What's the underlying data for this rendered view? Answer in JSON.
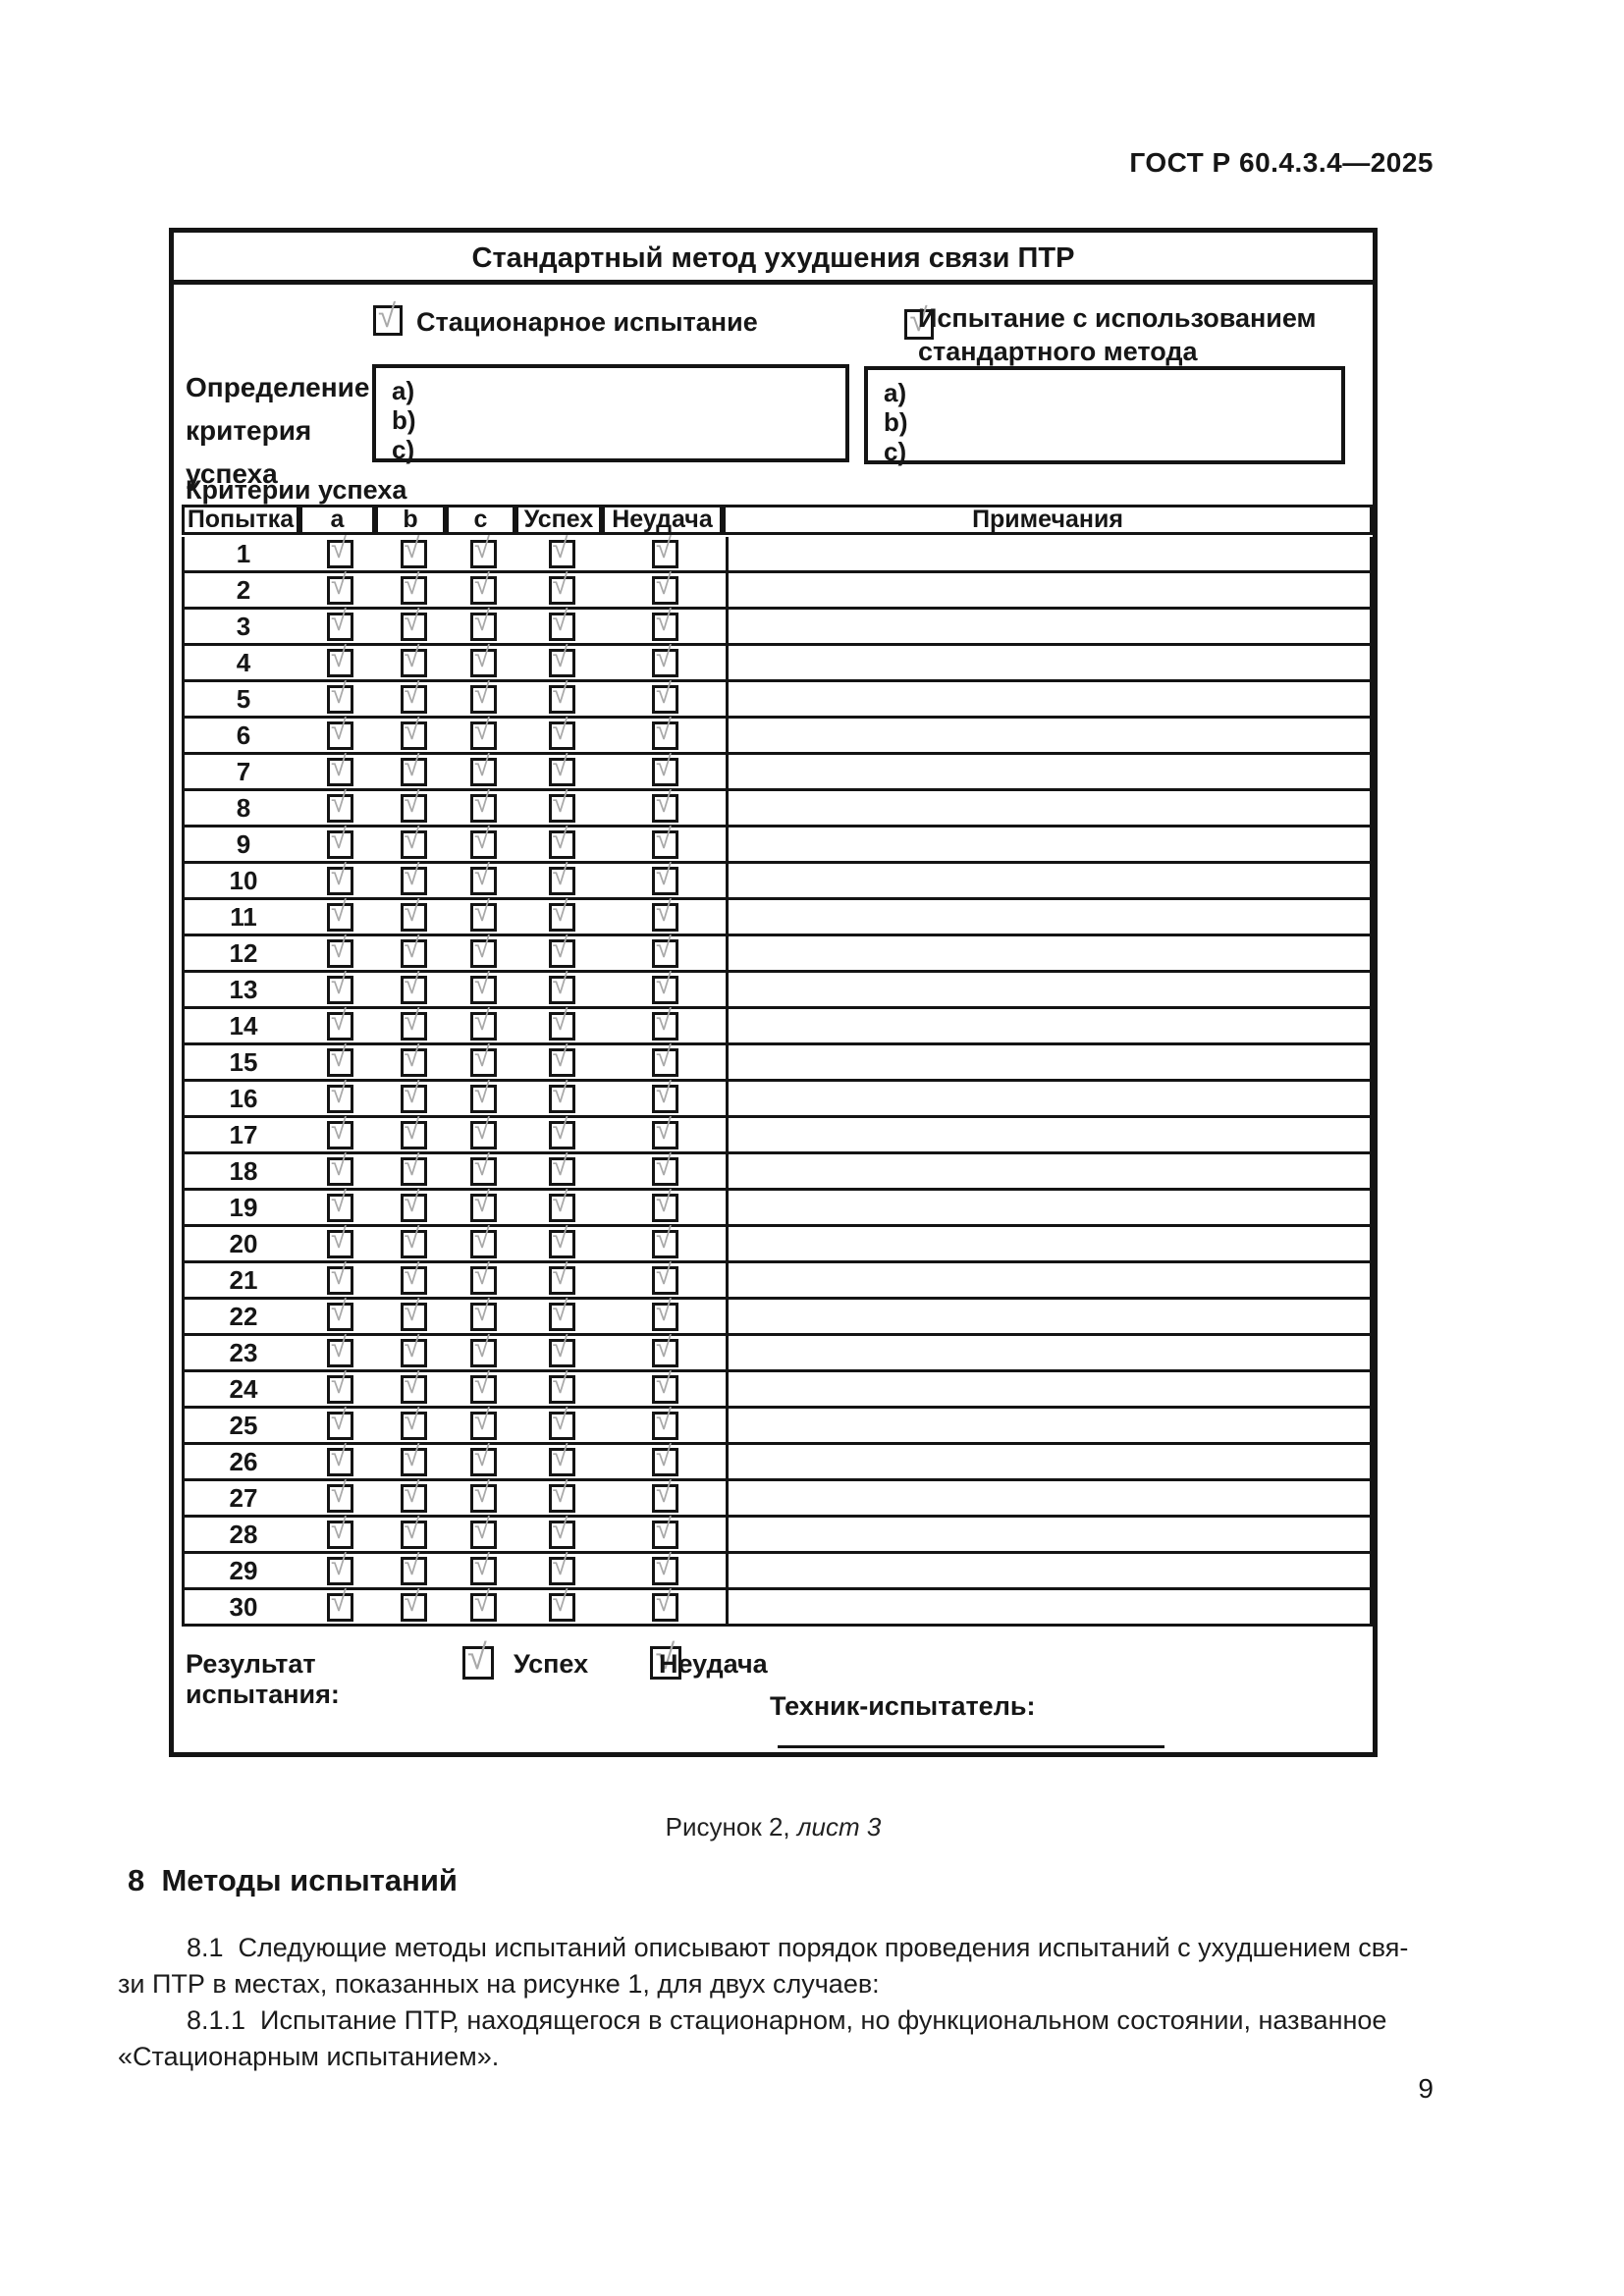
{
  "header": {
    "doc_number": "ГОСТ Р 60.4.3.4—2025"
  },
  "form": {
    "title": "Стандартный метод ухудшения связи ПТР",
    "check_glyph": "√",
    "stationary_test_label": "Стационарное испытание",
    "standard_test_label_line1": "Испытание с использованием",
    "standard_test_label_line2": "стандартного метода",
    "definition_label_lines": [
      "Определение",
      "критерия",
      "успеха"
    ],
    "criteria_items": [
      "a)",
      "b)",
      "c)"
    ],
    "criteria_section_label": "Критерии успеха",
    "table": {
      "headers": [
        "Попытка",
        "a",
        "b",
        "c",
        "Успех",
        "Неудача",
        "Примечания"
      ],
      "attempts": [
        "1",
        "2",
        "3",
        "4",
        "5",
        "6",
        "7",
        "8",
        "9",
        "10",
        "11",
        "12",
        "13",
        "14",
        "15",
        "16",
        "17",
        "18",
        "19",
        "20",
        "21",
        "22",
        "23",
        "24",
        "25",
        "26",
        "27",
        "28",
        "29",
        "30"
      ]
    },
    "result": {
      "label": "Результат испытания:",
      "success_label": "Успех",
      "failure_label": "Неудача"
    },
    "technician_label": "Техник-испытатель:"
  },
  "caption": {
    "prefix": "Рисунок 2, ",
    "suffix_italic": "лист 3"
  },
  "section": {
    "heading": "8  Методы испытаний",
    "paragraph_lines": [
      {
        "indent": true,
        "text": "8.1  Следующие методы испытаний описывают порядок проведения испытаний с ухудшением свя-"
      },
      {
        "indent": false,
        "text": "зи ПТР в местах, показанных на рисунке 1, для двух случаев:"
      },
      {
        "indent": true,
        "text": "8.1.1  Испытание ПТР, находящегося в стационарном, но функциональном состоянии, названное"
      },
      {
        "indent": false,
        "text": "«Стационарным испытанием»."
      }
    ]
  },
  "footer": {
    "page_number": "9"
  }
}
